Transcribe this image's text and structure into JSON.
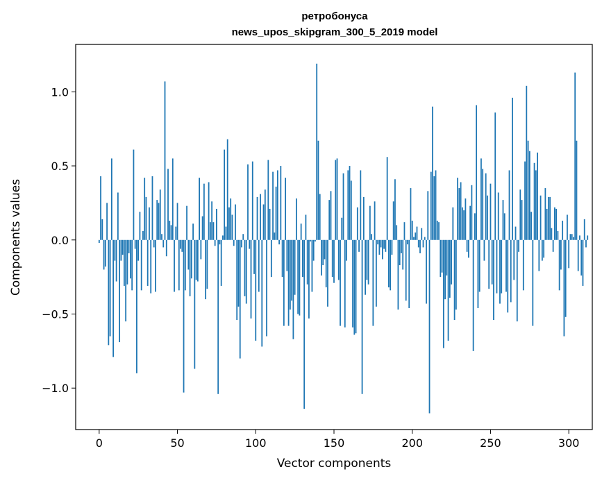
{
  "chart_data": {
    "type": "bar",
    "title_lines": [
      "ретробонуса",
      "news_upos_skipgram_300_5_2019 model"
    ],
    "xlabel": "Vector components",
    "ylabel": "Components values",
    "xlim": [
      -15,
      315
    ],
    "ylim": [
      -1.28,
      1.32
    ],
    "x_ticks": [
      0,
      50,
      100,
      150,
      200,
      250,
      300
    ],
    "x_tick_labels": [
      "0",
      "50",
      "100",
      "150",
      "200",
      "250",
      "300"
    ],
    "y_ticks": [
      -1.0,
      -0.5,
      0.0,
      0.5,
      1.0
    ],
    "y_tick_labels": [
      "−1.0",
      "−0.5",
      "0.0",
      "0.5",
      "1.0"
    ],
    "grid": false,
    "bar_color": "#1f77b4",
    "values": [
      -0.02,
      0.43,
      0.14,
      -0.2,
      -0.18,
      0.25,
      -0.71,
      -0.65,
      0.55,
      -0.79,
      -0.14,
      -0.28,
      0.32,
      -0.69,
      -0.14,
      -0.1,
      -0.31,
      -0.55,
      -0.3,
      -0.09,
      -0.26,
      -0.34,
      0.61,
      -0.06,
      -0.9,
      -0.14,
      0.19,
      -0.34,
      0.06,
      0.42,
      0.29,
      -0.31,
      0.22,
      -0.36,
      0.43,
      -0.05,
      -0.35,
      0.27,
      0.25,
      0.34,
      0.04,
      -0.05,
      1.07,
      -0.11,
      0.48,
      0.13,
      0.1,
      0.55,
      -0.35,
      0.09,
      0.25,
      -0.34,
      -0.06,
      -0.08,
      -1.03,
      -0.34,
      0.23,
      -0.2,
      -0.38,
      -0.26,
      0.11,
      -0.87,
      -0.27,
      -0.28,
      0.42,
      -0.13,
      0.16,
      0.38,
      -0.4,
      -0.33,
      0.39,
      0.12,
      0.26,
      0.12,
      -0.04,
      0.21,
      -1.04,
      -0.03,
      -0.31,
      0.03,
      0.61,
      0.09,
      0.68,
      0.22,
      0.28,
      0.17,
      -0.04,
      0.24,
      -0.54,
      -0.45,
      -0.8,
      -0.05,
      0.04,
      -0.38,
      -0.43,
      0.51,
      -0.06,
      -0.53,
      0.53,
      -0.23,
      -0.68,
      0.29,
      -0.35,
      0.31,
      -0.72,
      0.24,
      0.34,
      -0.65,
      0.54,
      0.21,
      -0.25,
      0.46,
      0.05,
      0.36,
      0.47,
      -0.03,
      0.5,
      -0.25,
      -0.58,
      0.42,
      -0.21,
      -0.58,
      -0.47,
      -0.41,
      -0.67,
      -0.37,
      0.28,
      -0.5,
      -0.51,
      0.11,
      -0.25,
      -1.14,
      0.17,
      -0.3,
      -0.53,
      -0.01,
      -0.35,
      -0.14,
      -0.01,
      1.19,
      0.67,
      0.31,
      -0.24,
      -0.17,
      -0.13,
      -0.32,
      -0.45,
      0.27,
      0.33,
      -0.25,
      -0.29,
      0.54,
      0.55,
      -0.27,
      -0.58,
      0.15,
      0.45,
      -0.59,
      -0.14,
      0.47,
      0.5,
      0.4,
      -0.59,
      -0.64,
      -0.63,
      0.22,
      -0.08,
      0.47,
      -1.04,
      0.29,
      -0.37,
      -0.27,
      -0.3,
      0.23,
      0.04,
      -0.58,
      0.26,
      -0.45,
      -0.03,
      -0.1,
      -0.05,
      -0.13,
      -0.06,
      -0.08,
      0.56,
      -0.32,
      -0.34,
      -0.1,
      0.26,
      0.41,
      0.1,
      -0.47,
      -0.17,
      -0.09,
      -0.2,
      0.12,
      -0.41,
      -0.03,
      -0.46,
      0.35,
      0.13,
      0.02,
      0.05,
      0.09,
      -0.05,
      -0.09,
      0.08,
      -0.05,
      0.02,
      -0.43,
      0.33,
      -1.17,
      0.46,
      0.9,
      0.43,
      0.47,
      0.13,
      0.12,
      -0.25,
      -0.22,
      -0.73,
      -0.4,
      -0.24,
      -0.68,
      -0.39,
      -0.3,
      0.22,
      -0.54,
      -0.47,
      0.42,
      0.35,
      0.39,
      0.22,
      0.2,
      0.28,
      -0.08,
      -0.12,
      0.23,
      0.37,
      -0.75,
      0.18,
      0.91,
      -0.46,
      -0.35,
      0.55,
      0.48,
      -0.14,
      0.45,
      0.3,
      -0.33,
      0.38,
      -0.3,
      -0.54,
      0.86,
      -0.36,
      0.32,
      -0.43,
      -0.36,
      0.27,
      0.18,
      -0.35,
      -0.49,
      0.47,
      -0.42,
      0.96,
      -0.27,
      0.09,
      -0.55,
      -0.08,
      0.34,
      0.27,
      -0.34,
      0.53,
      1.04,
      0.67,
      0.6,
      0.19,
      -0.58,
      0.52,
      0.47,
      0.59,
      -0.21,
      0.3,
      -0.14,
      -0.12,
      0.35,
      0.21,
      0.29,
      0.29,
      0.08,
      -0.08,
      0.22,
      0.21,
      0.06,
      -0.34,
      -0.2,
      0.13,
      -0.65,
      -0.52,
      0.17,
      -0.19,
      0.04,
      0.04,
      0.02,
      1.13,
      0.67,
      -0.21,
      0.03,
      -0.24,
      -0.31,
      0.14,
      -0.05,
      0.03
    ]
  }
}
